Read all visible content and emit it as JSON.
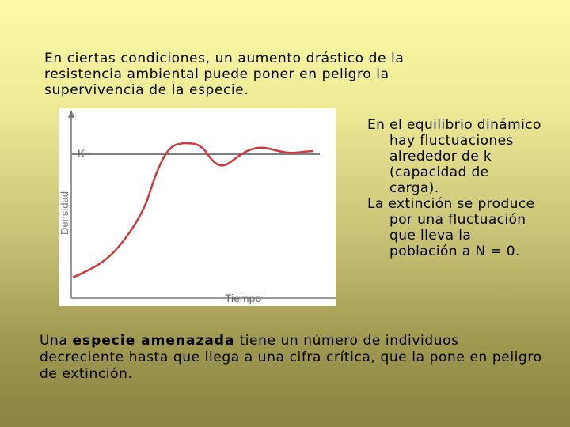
{
  "intro_text": "En ciertas condiciones, un aumento drástico de la resistencia ambiental puede poner en peligro la supervivencia de la especie.",
  "figure": {
    "k_label": "K",
    "y_axis_label": "Densidad",
    "x_axis_label": "Tiempo",
    "curve_color": "#d0383f",
    "line_color": "#808080",
    "curve": {
      "type": "logistic-oscillating",
      "description_points_time": [
        0,
        0.06,
        0.12,
        0.18,
        0.24,
        0.3,
        0.34,
        0.38,
        0.42,
        0.46,
        0.52,
        0.58,
        0.64,
        0.7,
        0.76,
        0.82,
        0.88,
        0.94,
        1.0
      ],
      "description_points_density": [
        0.12,
        0.15,
        0.2,
        0.27,
        0.38,
        0.55,
        0.68,
        0.8,
        0.88,
        0.92,
        0.91,
        0.87,
        0.84,
        0.86,
        0.89,
        0.88,
        0.86,
        0.85,
        0.85
      ]
    }
  },
  "side_text": {
    "paragraph1": "En el equilibrio dinámico hay fluctuaciones alrededor de k (capacidad de carga).",
    "paragraph2": "La extinción se produce por una fluctuación que lleva la población a N = 0."
  },
  "bottom_text": {
    "prefix": "Una ",
    "bold": "especie amenazada",
    "suffix": " tiene un número de individuos decreciente hasta que llega a una cifra crítica, que la pone en peligro de extinción."
  }
}
